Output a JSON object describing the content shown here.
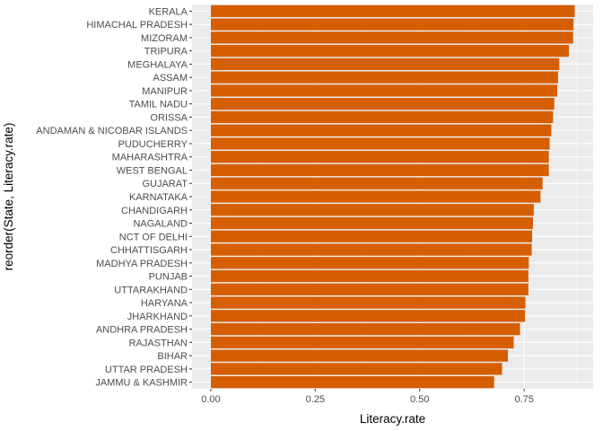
{
  "colors": {
    "bar": "#d55e00",
    "panel": "#ebebeb",
    "grid_major": "#ffffff",
    "grid_minor": "#f5f5f5",
    "tick_text": "#4d4d4d"
  },
  "chart_data": {
    "type": "bar",
    "orientation": "horizontal",
    "xlabel": "Literacy.rate",
    "ylabel": "reorder(State, Literacy.rate)",
    "xlim": [
      -0.045,
      0.915
    ],
    "xticks": [
      0,
      0.25,
      0.5,
      0.75
    ],
    "xtick_labels": [
      "0.00",
      "0.25",
      "0.50",
      "0.75"
    ],
    "grid": true,
    "legend": "none",
    "categories": [
      "KERALA",
      "HIMACHAL PRADESH",
      "MIZORAM",
      "TRIPURA",
      "MEGHALAYA",
      "ASSAM",
      "MANIPUR",
      "TAMIL NADU",
      "ORISSA",
      "ANDAMAN & NICOBAR ISLANDS",
      "PUDUCHERRY",
      "MAHARASHTRA",
      "WEST BENGAL",
      "GUJARAT",
      "KARNATAKA",
      "CHANDIGARH",
      "NAGALAND",
      "NCT OF DELHI",
      "CHHATTISGARH",
      "MADHYA PRADESH",
      "PUNJAB",
      "UTTARAKHAND",
      "HARYANA",
      "JHARKHAND",
      "ANDHRA PRADESH",
      "RAJASTHAN",
      "BIHAR",
      "UTTAR PRADESH",
      "JAMMU & KASHMIR"
    ],
    "values": [
      0.871,
      0.868,
      0.867,
      0.857,
      0.834,
      0.831,
      0.829,
      0.822,
      0.819,
      0.815,
      0.811,
      0.809,
      0.809,
      0.794,
      0.789,
      0.773,
      0.771,
      0.769,
      0.768,
      0.761,
      0.76,
      0.76,
      0.753,
      0.752,
      0.74,
      0.725,
      0.711,
      0.697,
      0.678
    ]
  }
}
